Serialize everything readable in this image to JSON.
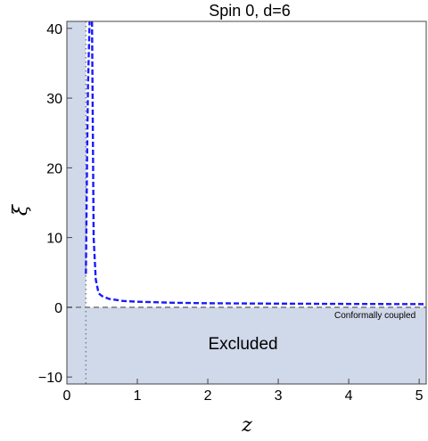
{
  "chart_data": {
    "type": "line",
    "title": "Spin 0, d=6",
    "xlabel": "z",
    "ylabel": "ξ",
    "xlim": [
      0,
      5.1
    ],
    "ylim": [
      -11,
      41
    ],
    "x_ticks": [
      0,
      1,
      2,
      3,
      4,
      5
    ],
    "y_ticks": [
      -10,
      0,
      10,
      20,
      30,
      40
    ],
    "grid": false,
    "series": [
      {
        "style": "dashed",
        "color": "#1a1aff",
        "x": [
          0.27,
          0.28,
          0.29,
          0.3,
          0.32,
          0.35,
          0.38,
          0.41,
          0.45,
          0.5,
          0.6,
          0.8,
          1.0,
          1.5,
          2.0,
          3.0,
          4.0,
          5.1
        ],
        "y": [
          4.8,
          14.5,
          24.0,
          32.0,
          40.0,
          50.0,
          10.0,
          4.0,
          2.0,
          1.6,
          1.2,
          0.9,
          0.8,
          0.65,
          0.58,
          0.52,
          0.48,
          0.45
        ]
      }
    ],
    "reference_lines": [
      {
        "orientation": "horizontal",
        "value": 0,
        "style": "dashed",
        "color": "#7f7f7f",
        "label": "Conformally coupled"
      },
      {
        "orientation": "vertical",
        "value": 0.27,
        "style": "dotted",
        "color": "#7f7f7f"
      }
    ],
    "shaded_regions": [
      {
        "label": "Excluded",
        "color": "#d0d9ea",
        "description_x": [
          0,
          0.27
        ],
        "description_y": [
          -11,
          41
        ]
      },
      {
        "label": "Excluded",
        "color": "#d0d9ea",
        "description_x": [
          0,
          5.1
        ],
        "description_y": [
          -11,
          0
        ]
      }
    ],
    "annotations": [
      "Excluded",
      "Conformally coupled"
    ]
  }
}
